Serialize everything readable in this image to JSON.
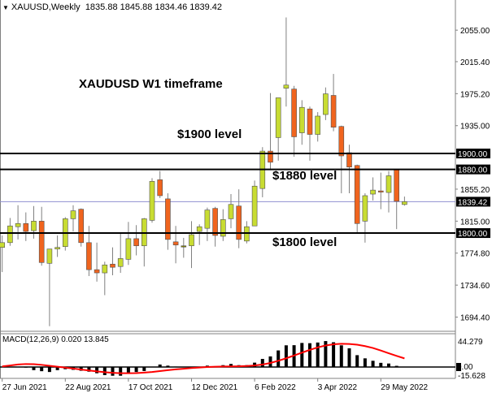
{
  "header": {
    "symbol_timeframe": "XAUUSD,Weekly",
    "ohlc": "1835.88 1845.88 1834.46 1839.42"
  },
  "annotations": {
    "title": "XAUDUSD W1 timeframe",
    "level_1900": "$1900 level",
    "level_1880": "$1880 level",
    "level_1800": "$1800 level"
  },
  "colors": {
    "bull": "#c8dc32",
    "bear": "#f0641e",
    "doji": "#808000",
    "wick": "#808080",
    "level_line": "#000000",
    "bid_line": "#9090d0",
    "macd_hist": "#000000",
    "macd_signal": "#ff0000"
  },
  "chart_data": [
    {
      "type": "candlestick",
      "title": "XAUUSD,Weekly",
      "ylim": [
        1677.6,
        2092.9
      ],
      "y_ticks": [
        "2055.00",
        "2015.40",
        "1975.20",
        "1935.00",
        "1855.20",
        "1815.00",
        "1774.80",
        "1734.60",
        "1694.40"
      ],
      "x_tick_labels": [
        {
          "label": "27 Jun 2021",
          "index": 0
        },
        {
          "label": "22 Aug 2021",
          "index": 8
        },
        {
          "label": "17 Oct 2021",
          "index": 16
        },
        {
          "label": "12 Dec 2021",
          "index": 24
        },
        {
          "label": "6 Feb 2022",
          "index": 32
        },
        {
          "label": "3 Apr 2022",
          "index": 40
        },
        {
          "label": "29 May 2022",
          "index": 48
        }
      ],
      "horizontal_levels": [
        {
          "price": 1900,
          "label": "1900.00"
        },
        {
          "price": 1880,
          "label": "1880.00"
        },
        {
          "price": 1800,
          "label": "1800.00"
        }
      ],
      "bid_line": {
        "price": 1839.42,
        "label": "1839.42"
      },
      "candles": [
        [
          1782,
          1797,
          1751,
          1788
        ],
        [
          1788,
          1819,
          1784,
          1809
        ],
        [
          1808,
          1835,
          1792,
          1812
        ],
        [
          1812,
          1826,
          1790,
          1802
        ],
        [
          1803,
          1834,
          1793,
          1815
        ],
        [
          1815,
          1833,
          1759,
          1763
        ],
        [
          1762,
          1780,
          1683,
          1780
        ],
        [
          1780,
          1797,
          1770,
          1782
        ],
        [
          1783,
          1820,
          1778,
          1818
        ],
        [
          1818,
          1835,
          1802,
          1828
        ],
        [
          1830,
          1831,
          1783,
          1788
        ],
        [
          1788,
          1809,
          1746,
          1754
        ],
        [
          1754,
          1788,
          1739,
          1750
        ],
        [
          1750,
          1764,
          1722,
          1760
        ],
        [
          1761,
          1782,
          1747,
          1757
        ],
        [
          1758,
          1800,
          1750,
          1768
        ],
        [
          1767,
          1814,
          1760,
          1793
        ],
        [
          1793,
          1810,
          1772,
          1784
        ],
        [
          1784,
          1819,
          1758,
          1818
        ],
        [
          1816,
          1869,
          1813,
          1865
        ],
        [
          1867,
          1878,
          1844,
          1847
        ],
        [
          1843,
          1850,
          1779,
          1792
        ],
        [
          1789,
          1809,
          1762,
          1785
        ],
        [
          1784,
          1794,
          1769,
          1783.5
        ],
        [
          1784,
          1815,
          1756,
          1798
        ],
        [
          1802,
          1811,
          1785,
          1808
        ],
        [
          1806,
          1832,
          1790,
          1829
        ],
        [
          1831,
          1833,
          1783,
          1797
        ],
        [
          1796,
          1830,
          1790,
          1817
        ],
        [
          1818,
          1849,
          1806,
          1836
        ],
        [
          1834,
          1855,
          1781,
          1792
        ],
        [
          1790,
          1815,
          1787,
          1808
        ],
        [
          1809,
          1866,
          1809,
          1859
        ],
        [
          1856,
          1908,
          1845,
          1903
        ],
        [
          1903,
          1976,
          1879,
          1889
        ],
        [
          1920,
          1970,
          1891,
          1970
        ],
        [
          1982,
          2071,
          1959,
          1986
        ],
        [
          1981,
          1985,
          1896,
          1921
        ],
        [
          1926,
          1967,
          1911,
          1958
        ],
        [
          1956,
          1959,
          1891,
          1924
        ],
        [
          1924,
          1952,
          1915,
          1947
        ],
        [
          1949,
          1983,
          1942,
          1975
        ],
        [
          1973,
          2000,
          1928,
          1933
        ],
        [
          1934,
          1935,
          1850,
          1897
        ],
        [
          1901,
          1911,
          1850,
          1883
        ],
        [
          1885,
          1886,
          1800,
          1812
        ],
        [
          1815,
          1850,
          1788,
          1847
        ],
        [
          1849,
          1870,
          1841,
          1854
        ],
        [
          1853,
          1876,
          1830,
          1852
        ],
        [
          1851,
          1878,
          1826,
          1872
        ],
        [
          1880,
          1880,
          1805,
          1840
        ],
        [
          1835.88,
          1845.88,
          1834.46,
          1839.42
        ]
      ]
    },
    {
      "type": "bar+line",
      "title": "MACD(12,26,9) 0.020 13.845",
      "ylim": [
        -15.628,
        44.279
      ],
      "y_ticks": [
        "44.279",
        "0.00",
        "-15.628"
      ],
      "histogram": [
        -0.5,
        -0.5,
        -0.5,
        -1,
        -5,
        -6.7,
        -8,
        -5,
        -3.5,
        -4.5,
        -6,
        -7.5,
        -10,
        -13,
        -14,
        -14,
        -11,
        -8,
        -6.4,
        0,
        4,
        2.2,
        0.7,
        0,
        0.5,
        0.5,
        2.2,
        1,
        3,
        4.9,
        3,
        3,
        7,
        13,
        17,
        26.6,
        34.8,
        35,
        38.6,
        38.2,
        39.3,
        41.6,
        39.7,
        34.8,
        30,
        19,
        13.9,
        10,
        6.7,
        5.6,
        1.9,
        0.02
      ],
      "signal": [
        1,
        2.5,
        4,
        4.8,
        4.5,
        3.5,
        2,
        0.5,
        -1,
        -2.5,
        -4,
        -5.5,
        -7,
        -8.3,
        -9.3,
        -10,
        -10,
        -9.8,
        -9,
        -8,
        -6.5,
        -5,
        -3.8,
        -2.7,
        -1.7,
        -0.8,
        0,
        0.5,
        0.8,
        1,
        1.2,
        1.6,
        2.5,
        4,
        6.5,
        10,
        14,
        18.5,
        23,
        27.5,
        31.5,
        34.5,
        36.5,
        37.3,
        37,
        35.8,
        33.5,
        30.5,
        26.5,
        22,
        17.8,
        13.845
      ]
    }
  ]
}
